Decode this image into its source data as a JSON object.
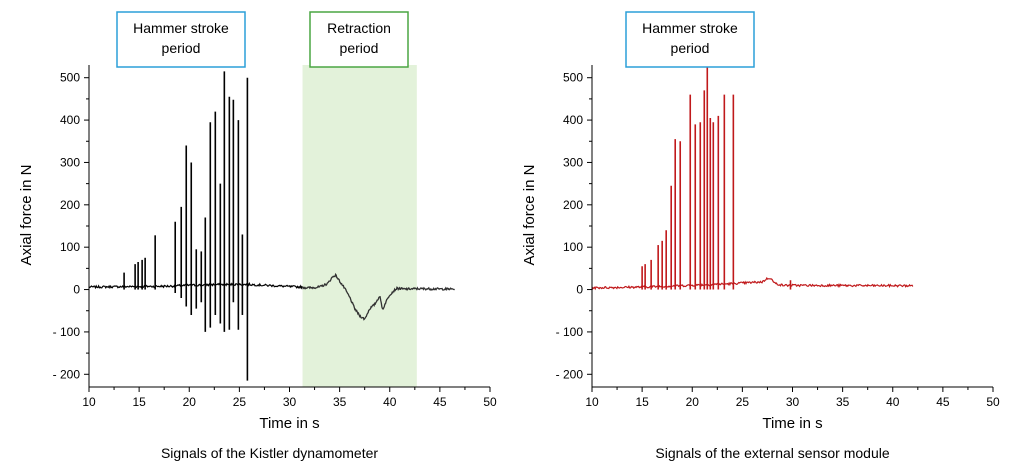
{
  "chart_data": [
    {
      "type": "line",
      "caption": "Signals of the Kistler dynamometer",
      "xlabel": "Time in s",
      "ylabel": "Axial force in N",
      "xlim": [
        10,
        50
      ],
      "ylim": [
        -230,
        530
      ],
      "x_ticks": [
        10,
        15,
        20,
        25,
        30,
        35,
        40,
        45,
        50
      ],
      "y_ticks": [
        -200,
        -100,
        0,
        100,
        200,
        300,
        400,
        500
      ],
      "y_tick_labels": [
        "- 200",
        "- 100",
        "0",
        "100",
        "200",
        "300",
        "400",
        "500"
      ],
      "grid": false,
      "line_color": "#000000",
      "shaded_region": {
        "x": [
          31.3,
          42.7
        ],
        "color": "#e3f2da"
      },
      "annotations": [
        {
          "lines": [
            "Hammer stroke",
            "period"
          ],
          "border_color": "#2b9fd8"
        },
        {
          "lines": [
            "Retraction",
            "period"
          ],
          "border_color": "#4aa542"
        }
      ],
      "series": [
        {
          "baseline": [
            [
              10,
              6
            ],
            [
              18,
              8
            ],
            [
              20,
              10
            ],
            [
              23,
              12
            ],
            [
              26,
              12
            ],
            [
              30,
              7
            ],
            [
              31.3,
              6
            ]
          ],
          "spikes": [
            [
              13.5,
              40,
              0
            ],
            [
              14.6,
              60,
              0
            ],
            [
              14.9,
              65,
              0
            ],
            [
              15.3,
              70,
              0
            ],
            [
              15.6,
              75,
              0
            ],
            [
              16.6,
              128,
              0
            ],
            [
              18.6,
              160,
              -8
            ],
            [
              19.2,
              195,
              -20
            ],
            [
              19.7,
              340,
              -40
            ],
            [
              20.2,
              300,
              -60
            ],
            [
              20.7,
              95,
              -45
            ],
            [
              21.2,
              90,
              -30
            ],
            [
              21.6,
              170,
              -100
            ],
            [
              22.1,
              395,
              -90
            ],
            [
              22.6,
              420,
              -60
            ],
            [
              23.1,
              250,
              -80
            ],
            [
              23.5,
              515,
              -100
            ],
            [
              24.0,
              455,
              -95
            ],
            [
              24.4,
              448,
              -30
            ],
            [
              24.9,
              400,
              -95
            ],
            [
              25.3,
              130,
              -60
            ],
            [
              25.8,
              500,
              -215
            ]
          ],
          "retraction": [
            [
              31.3,
              5
            ],
            [
              32.0,
              4
            ],
            [
              33.0,
              6
            ],
            [
              33.8,
              14
            ],
            [
              34.3,
              30
            ],
            [
              34.6,
              34
            ],
            [
              35.0,
              20
            ],
            [
              35.5,
              3
            ],
            [
              36.0,
              -18
            ],
            [
              36.5,
              -45
            ],
            [
              37.0,
              -62
            ],
            [
              37.5,
              -70
            ],
            [
              38.0,
              -45
            ],
            [
              38.5,
              -35
            ],
            [
              39.0,
              -15
            ],
            [
              39.3,
              -48
            ],
            [
              39.6,
              -30
            ],
            [
              40.0,
              -12
            ],
            [
              40.4,
              -3
            ],
            [
              40.7,
              3
            ],
            [
              41.5,
              1
            ],
            [
              42.7,
              2
            ],
            [
              46.5,
              1
            ]
          ]
        }
      ]
    },
    {
      "type": "line",
      "caption": "Signals of the external sensor module",
      "xlabel": "Time in s",
      "ylabel": "Axial force in N",
      "xlim": [
        10,
        50
      ],
      "ylim": [
        -230,
        530
      ],
      "x_ticks": [
        10,
        15,
        20,
        25,
        30,
        35,
        40,
        45,
        50
      ],
      "y_ticks": [
        -200,
        -100,
        0,
        100,
        200,
        300,
        400,
        500
      ],
      "y_tick_labels": [
        "- 200",
        "- 100",
        "0",
        "100",
        "200",
        "300",
        "400",
        "500"
      ],
      "grid": false,
      "line_color": "#c0191b",
      "annotations": [
        {
          "lines": [
            "Hammer stroke",
            "period"
          ],
          "border_color": "#2b9fd8"
        }
      ],
      "series": [
        {
          "baseline": [
            [
              10,
              4
            ],
            [
              15,
              6
            ],
            [
              20,
              10
            ],
            [
              24,
              14
            ],
            [
              27,
              18
            ],
            [
              27.4,
              25
            ],
            [
              27.8,
              28
            ],
            [
              28.2,
              15
            ],
            [
              29,
              10
            ],
            [
              42,
              9
            ]
          ],
          "spikes": [
            [
              15.0,
              55,
              0
            ],
            [
              15.3,
              60,
              0
            ],
            [
              15.9,
              70,
              0
            ],
            [
              16.6,
              105,
              0
            ],
            [
              17.0,
              115,
              0
            ],
            [
              17.4,
              140,
              0
            ],
            [
              17.9,
              245,
              0
            ],
            [
              18.3,
              355,
              0
            ],
            [
              18.8,
              350,
              0
            ],
            [
              19.8,
              460,
              0
            ],
            [
              20.3,
              390,
              0
            ],
            [
              20.8,
              395,
              0
            ],
            [
              21.2,
              470,
              0
            ],
            [
              21.5,
              525,
              0
            ],
            [
              21.8,
              405,
              0
            ],
            [
              22.1,
              395,
              0
            ],
            [
              22.6,
              410,
              0
            ],
            [
              23.2,
              460,
              0
            ],
            [
              24.1,
              460,
              0
            ],
            [
              29.8,
              22,
              0
            ]
          ]
        }
      ]
    }
  ]
}
